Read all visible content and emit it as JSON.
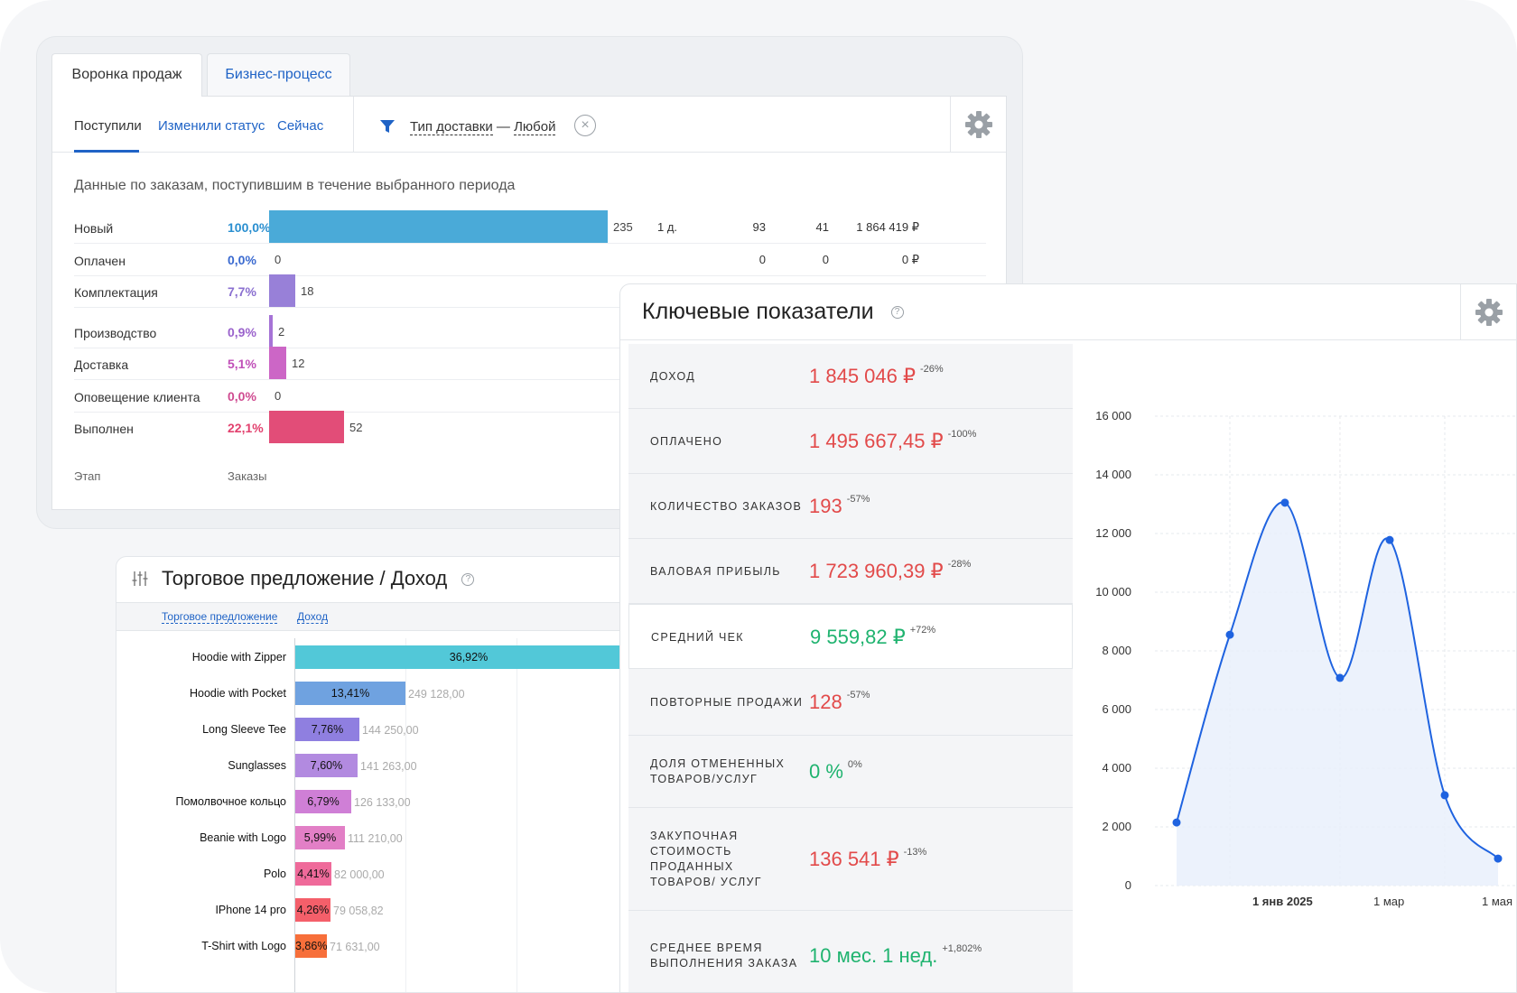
{
  "funnel": {
    "tabs": [
      "Воронка продаж",
      "Бизнес-процесс"
    ],
    "subtabs": [
      "Поступили",
      "Изменили статус",
      "Сейчас"
    ],
    "filter": {
      "name": "Тип доставки",
      "dash": "—",
      "value": "Любой"
    },
    "description": "Данные по заказам, поступившим в течение выбранного периода",
    "rows": [
      {
        "label": "Новый",
        "pct": "100,0%",
        "fraction": 1.0,
        "count": "235",
        "c1": "1 д.",
        "c2": "93",
        "c3": "41",
        "c4": "1 864 419 ₽",
        "color": "#4aaad8",
        "pctColor": "#2a8fd0"
      },
      {
        "label": "Оплачен",
        "pct": "0,0%",
        "fraction": 0.0,
        "count": "0",
        "c1": "",
        "c2": "0",
        "c3": "0",
        "c4": "0 ₽",
        "color": "#3f6fd0",
        "pctColor": "#3a6ad0"
      },
      {
        "label": "Комплектация",
        "pct": "7,7%",
        "fraction": 0.077,
        "count": "18",
        "c1": "",
        "c2": "",
        "c3": "",
        "c4": "",
        "color": "#9880d8",
        "pctColor": "#8a6fd0"
      },
      {
        "label": "Производство",
        "pct": "0,9%",
        "fraction": 0.009,
        "count": "2",
        "c1": "",
        "c2": "",
        "c3": "",
        "c4": "",
        "color": "#a673d6",
        "pctColor": "#9a62cc"
      },
      {
        "label": "Доставка",
        "pct": "5,1%",
        "fraction": 0.051,
        "count": "12",
        "c1": "",
        "c2": "",
        "c3": "",
        "c4": "",
        "color": "#cc66c6",
        "pctColor": "#c04fb8"
      },
      {
        "label": "Оповещение клиента",
        "pct": "0,0%",
        "fraction": 0.0,
        "count": "0",
        "c1": "",
        "c2": "",
        "c3": "",
        "c4": "",
        "color": "#d85c9e",
        "pctColor": "#cf4a90"
      },
      {
        "label": "Выполнен",
        "pct": "22,1%",
        "fraction": 0.221,
        "count": "52",
        "c1": "",
        "c2": "",
        "c3": "",
        "c4": "",
        "color": "#e24d78",
        "pctColor": "#e2416e"
      }
    ],
    "footer": {
      "stage": "Этап",
      "orders": "Заказы"
    }
  },
  "offer": {
    "title": "Торговое предложение / Доход",
    "links": [
      "Торговое предложение",
      "Доход"
    ],
    "products": [
      {
        "name": "Hoodie with Zipper",
        "pct": "36,92%",
        "share": 0.3692,
        "value": "",
        "color": "#52c8d8"
      },
      {
        "name": "Hoodie with Pocket",
        "pct": "13,41%",
        "share": 0.1341,
        "value": "249 128,00",
        "color": "#6fa2e0"
      },
      {
        "name": "Long Sleeve Tee",
        "pct": "7,76%",
        "share": 0.0776,
        "value": "144 250,00",
        "color": "#8f7fe0"
      },
      {
        "name": "Sunglasses",
        "pct": "7,60%",
        "share": 0.076,
        "value": "141 263,00",
        "color": "#b28ae0"
      },
      {
        "name": "Помолвочное кольцо",
        "pct": "6,79%",
        "share": 0.0679,
        "value": "126 133,00",
        "color": "#cf7fd6"
      },
      {
        "name": "Beanie with Logo",
        "pct": "5,99%",
        "share": 0.0599,
        "value": "111 210,00",
        "color": "#e27fc6"
      },
      {
        "name": "Polo",
        "pct": "4,41%",
        "share": 0.0441,
        "value": "82 000,00",
        "color": "#ef6a9a"
      },
      {
        "name": "IPhone 14 pro",
        "pct": "4,26%",
        "share": 0.0426,
        "value": "79 058,82",
        "color": "#f45f6a"
      },
      {
        "name": "T-Shirt with Logo",
        "pct": "3,86%",
        "share": 0.0386,
        "value": "71 631,00",
        "color": "#f76f3a"
      }
    ]
  },
  "kpi": {
    "title": "Ключевые показатели",
    "items": [
      {
        "label": "Доход",
        "value": "1 845 046 ₽",
        "change": "-26%",
        "tone": "red"
      },
      {
        "label": "Оплачено",
        "value": "1 495 667,45 ₽",
        "change": "-100%",
        "tone": "red"
      },
      {
        "label": "Количество заказов",
        "value": "193",
        "change": "-57%",
        "tone": "red"
      },
      {
        "label": "Валовая прибыль",
        "value": "1 723 960,39 ₽",
        "change": "-28%",
        "tone": "red"
      },
      {
        "label": "Средний чек",
        "value": "9 559,82 ₽",
        "change": "+72%",
        "tone": "green"
      },
      {
        "label": "Повторные продажи",
        "value": "128",
        "change": "-57%",
        "tone": "red"
      },
      {
        "label": "Доля отмененных товаров/услуг",
        "value": "0 %",
        "change": "0%",
        "tone": "green"
      },
      {
        "label": "Закупочная стоимость проданных товаров/ услуг",
        "value": "136 541 ₽",
        "change": "-13%",
        "tone": "red"
      },
      {
        "label": "Среднее время выполнения заказа",
        "value": "10 мес. 1 нед.",
        "change": "+1,802%",
        "tone": "green"
      }
    ]
  },
  "chart_data": {
    "type": "area",
    "title": "",
    "xlabel": "",
    "ylabel": "",
    "ylim": [
      0,
      16000
    ],
    "yticks": [
      "0",
      "2 000",
      "4 000",
      "6 000",
      "8 000",
      "10 000",
      "12 000",
      "14 000",
      "16 000"
    ],
    "xticks": [
      "1 янв 2025",
      "1 мар",
      "1 мая"
    ],
    "x": [
      "2024-11-01",
      "2024-12-01",
      "2025-01-01",
      "2025-02-01",
      "2025-03-01",
      "2025-04-01",
      "2025-05-01"
    ],
    "series": [
      {
        "values": [
          2150,
          8550,
          13050,
          7080,
          11780,
          3080,
          920
        ]
      }
    ],
    "grid": true,
    "color": "#1f63e0"
  }
}
